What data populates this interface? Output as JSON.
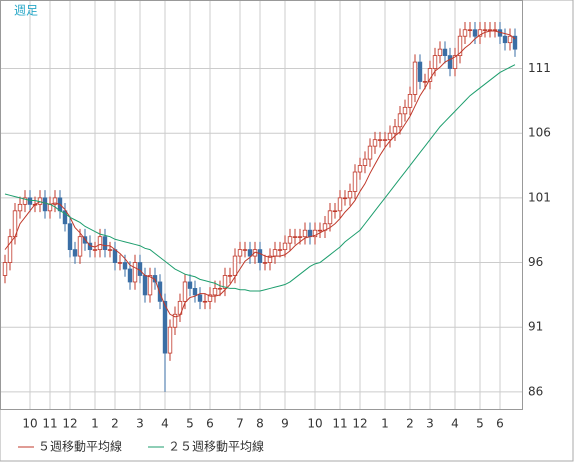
{
  "chart_data": {
    "type": "candlestick",
    "title": "週足",
    "categories": [
      null,
      null,
      null,
      null,
      null,
      "10",
      null,
      null,
      null,
      "11",
      null,
      null,
      null,
      "12",
      null,
      null,
      null,
      null,
      "1",
      null,
      null,
      null,
      "2",
      null,
      null,
      null,
      null,
      "3",
      null,
      null,
      null,
      null,
      "4",
      null,
      null,
      null,
      null,
      "5",
      null,
      null,
      null,
      "6",
      null,
      null,
      null,
      null,
      null,
      "7",
      null,
      null,
      null,
      "8",
      null,
      null,
      null,
      null,
      "9",
      null,
      null,
      null,
      null,
      null,
      "10",
      null,
      null,
      null,
      null,
      "11",
      null,
      null,
      null,
      "12",
      null,
      null,
      null,
      null,
      "1",
      null,
      null,
      null,
      null,
      "2",
      null,
      null,
      null,
      "3",
      null,
      null,
      null,
      null,
      "4",
      null,
      null,
      null,
      null,
      "5",
      null,
      null,
      null,
      "6",
      null,
      null,
      null
    ],
    "open": [
      95,
      96,
      98,
      100,
      100.5,
      101,
      100.5,
      100.5,
      101,
      100,
      100.5,
      101,
      100,
      99,
      97,
      96.5,
      98,
      97.5,
      97,
      97,
      98,
      97,
      97,
      96,
      96,
      95.5,
      94.5,
      96,
      95,
      93.5,
      95,
      94.5,
      93,
      89,
      91,
      92,
      93,
      94.5,
      94,
      93.5,
      93,
      93,
      93.5,
      94,
      94,
      95,
      95,
      96.5,
      97,
      97,
      96.5,
      97,
      96,
      96,
      96.5,
      97,
      97,
      97.5,
      98,
      98,
      98,
      98.5,
      98,
      98.5,
      98.5,
      99,
      100,
      100,
      101,
      101,
      101.5,
      103,
      103.5,
      104,
      105,
      105.5,
      105.5,
      105.5,
      106,
      106.5,
      107.5,
      108,
      109,
      111.5,
      110,
      110,
      111,
      112,
      112.5,
      112,
      111,
      112,
      113.5,
      114,
      114,
      113.5,
      114,
      114,
      114,
      114,
      113.5,
      113,
      113.5
    ],
    "high": [
      96.6,
      98.6,
      100.6,
      101.1,
      101.6,
      101.6,
      101.1,
      101.6,
      101.6,
      101.1,
      101.6,
      101.6,
      100.6,
      99.6,
      97.6,
      98.6,
      98.6,
      98.1,
      97.6,
      98.6,
      98.6,
      97.6,
      97.6,
      96.6,
      96.6,
      96.1,
      96.6,
      96.6,
      95.6,
      95.6,
      95.6,
      95.1,
      93.6,
      91.6,
      92.6,
      93.6,
      95.1,
      95.1,
      94.6,
      94.1,
      93.6,
      94.1,
      94.6,
      94.6,
      95.6,
      95.6,
      97.1,
      97.6,
      97.6,
      97.6,
      97.6,
      97.6,
      96.6,
      97.1,
      97.6,
      97.6,
      98.1,
      98.6,
      98.6,
      98.6,
      99.1,
      99.1,
      99.1,
      99.1,
      99.6,
      100.6,
      100.6,
      101.6,
      101.6,
      102.1,
      103.6,
      104.1,
      104.6,
      105.6,
      106.1,
      106.1,
      106.1,
      106.6,
      107.1,
      108.1,
      108.6,
      109.6,
      112.1,
      112.1,
      110.6,
      111.6,
      112.6,
      113.1,
      113.1,
      112.6,
      112.6,
      114.1,
      114.6,
      114.6,
      114.6,
      114.6,
      114.6,
      114.6,
      114.6,
      114.6,
      114.1,
      114.1,
      114.1
    ],
    "low": [
      94.4,
      95.4,
      97.4,
      99.4,
      99.9,
      99.9,
      99.9,
      99.9,
      99.4,
      99.4,
      99.9,
      99.4,
      98.4,
      96.4,
      95.9,
      95.9,
      96.9,
      96.4,
      96.4,
      96.4,
      96.4,
      96.4,
      95.4,
      95.4,
      94.9,
      93.9,
      93.9,
      94.4,
      92.9,
      92.9,
      93.9,
      92.4,
      86,
      88.4,
      90.4,
      91.4,
      92.4,
      93.4,
      92.9,
      92.4,
      92.4,
      92.4,
      92.9,
      93.4,
      93.4,
      94.4,
      94.4,
      95.9,
      96.4,
      95.9,
      95.9,
      95.4,
      95.4,
      95.4,
      95.9,
      96.4,
      96.4,
      96.9,
      97.4,
      97.4,
      97.4,
      97.4,
      97.4,
      97.9,
      97.9,
      98.4,
      99.4,
      99.4,
      100.4,
      100.4,
      100.9,
      102.4,
      102.9,
      103.4,
      104.4,
      104.9,
      104.9,
      104.9,
      105.4,
      105.9,
      106.9,
      107.4,
      108.4,
      109.4,
      109.4,
      109.4,
      110.4,
      111.4,
      111.4,
      110.4,
      110.4,
      111.4,
      112.9,
      113.4,
      112.9,
      112.9,
      113.4,
      113.4,
      113.4,
      112.9,
      112.4,
      112.4,
      111.9
    ],
    "close": [
      96,
      98,
      100,
      100.5,
      101,
      100.5,
      100.5,
      101,
      100,
      100.5,
      101,
      100,
      99,
      97,
      96.5,
      98,
      97.5,
      97,
      97,
      98,
      97,
      97,
      96,
      96,
      95.5,
      94.5,
      96,
      95,
      93.5,
      95,
      94.5,
      93,
      89,
      91,
      92,
      93,
      94.5,
      94,
      93.5,
      93,
      93,
      93.5,
      94,
      94,
      95,
      95,
      96.5,
      97,
      97,
      96.5,
      97,
      96,
      96,
      96.5,
      97,
      97,
      97.5,
      98,
      98,
      98,
      98.5,
      98,
      98.5,
      98.5,
      99,
      100,
      100,
      101,
      101,
      101.5,
      103,
      103.5,
      104,
      105,
      105.5,
      105.5,
      105.5,
      106,
      106.5,
      107.5,
      108,
      109,
      111.5,
      110,
      110,
      111,
      112,
      112.5,
      112,
      111,
      112,
      113.5,
      114,
      114,
      113.5,
      114,
      114,
      114,
      114,
      113.5,
      113,
      113.5,
      112.5
    ],
    "up_color": "#c0392b",
    "down_color": "#3a6ea5",
    "series": [
      {
        "name": "５週移動平均線",
        "color": "#c0392b",
        "values": [
          97,
          97.5,
          98,
          99,
          99.5,
          100,
          100.5,
          100.7,
          100.6,
          100.5,
          100.6,
          100.5,
          100.1,
          99.5,
          98.7,
          98.3,
          97.8,
          97.3,
          97.2,
          97.4,
          97.3,
          97.3,
          97,
          96.7,
          96.3,
          95.8,
          95.6,
          95.4,
          95,
          94.9,
          94.7,
          93.6,
          92.7,
          92,
          91.8,
          91.9,
          92.9,
          93.3,
          93.4,
          93.6,
          93.6,
          93.4,
          93.4,
          93.5,
          93.9,
          94.3,
          94.9,
          95.5,
          96.1,
          96.4,
          96.8,
          96.7,
          96.5,
          96.4,
          96.5,
          96.5,
          96.6,
          96.9,
          97.3,
          97.6,
          97.9,
          98,
          98.1,
          98.3,
          98.5,
          98.7,
          99,
          99.4,
          99.9,
          100.3,
          100.8,
          101.5,
          102.1,
          102.9,
          103.6,
          104.3,
          104.9,
          105.4,
          105.8,
          106.1,
          106.7,
          107.3,
          108.1,
          108.9,
          109.5,
          110.2,
          110.8,
          111.1,
          111.5,
          111.7,
          111.9,
          112.2,
          112.6,
          112.9,
          113.3,
          113.6,
          113.8,
          113.9,
          113.9,
          113.8,
          113.7,
          113.6,
          113.3
        ]
      },
      {
        "name": "２５週移動平均線",
        "color": "#1e9e6e",
        "values": [
          101.3,
          101.2,
          101.1,
          101,
          100.9,
          100.8,
          100.8,
          100.7,
          100.6,
          100.5,
          100.3,
          100,
          99.8,
          99.5,
          99.3,
          99.1,
          98.8,
          98.6,
          98.4,
          98.2,
          98.1,
          98,
          97.8,
          97.7,
          97.6,
          97.5,
          97.4,
          97.3,
          97.1,
          97,
          96.7,
          96.4,
          96.1,
          95.8,
          95.5,
          95.3,
          95.1,
          95,
          94.9,
          94.7,
          94.6,
          94.5,
          94.4,
          94.2,
          94.1,
          94,
          94,
          93.9,
          93.9,
          93.8,
          93.8,
          93.8,
          93.9,
          94,
          94.1,
          94.2,
          94.3,
          94.5,
          94.8,
          95.1,
          95.4,
          95.7,
          95.9,
          96,
          96.3,
          96.6,
          96.9,
          97.2,
          97.6,
          97.9,
          98.2,
          98.5,
          99,
          99.5,
          100,
          100.5,
          101,
          101.5,
          102,
          102.5,
          103,
          103.5,
          104,
          104.5,
          105,
          105.5,
          106,
          106.5,
          106.9,
          107.3,
          107.7,
          108.1,
          108.5,
          108.9,
          109.2,
          109.5,
          109.8,
          110.1,
          110.4,
          110.7,
          110.9,
          111.1,
          111.3
        ]
      }
    ],
    "ylim": [
      84.6,
      116.3
    ],
    "yticks": [
      86,
      91,
      96,
      101,
      106,
      111
    ],
    "grid": true
  }
}
